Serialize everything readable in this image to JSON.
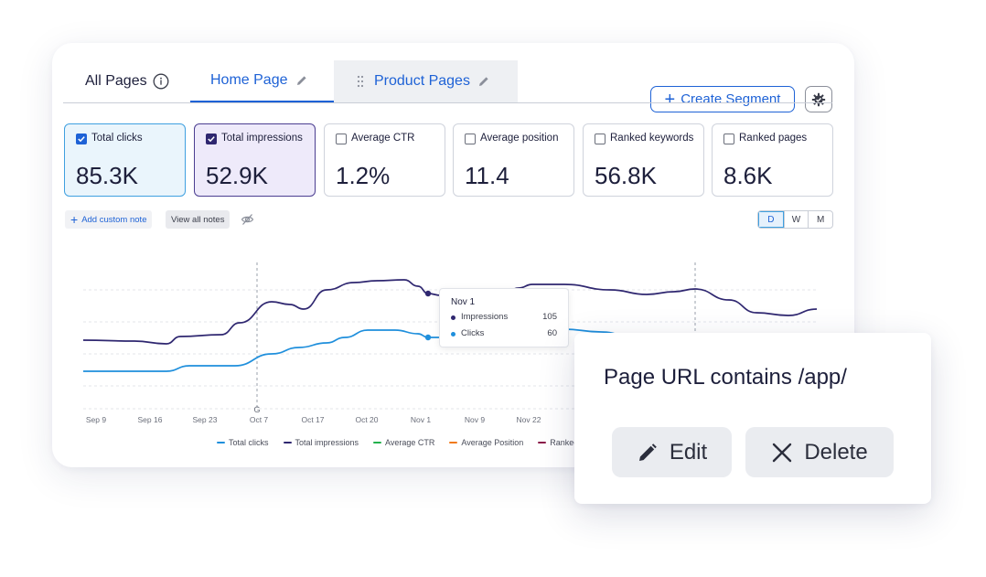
{
  "tabs": {
    "all_pages": "All Pages",
    "home_page": "Home Page",
    "product_pages": "Product Pages"
  },
  "toolbar": {
    "create_segment": "Create Segment",
    "settings_icon": "gear-check-icon"
  },
  "metrics": [
    {
      "label": "Total clicks",
      "value": "85.3K",
      "checked": true
    },
    {
      "label": "Total impressions",
      "value": "52.9K",
      "checked": true
    },
    {
      "label": "Average CTR",
      "value": "1.2%",
      "checked": false
    },
    {
      "label": "Average position",
      "value": "11.4",
      "checked": false
    },
    {
      "label": "Ranked keywords",
      "value": "56.8K",
      "checked": false
    },
    {
      "label": "Ranked pages",
      "value": "8.6K",
      "checked": false
    }
  ],
  "notes": {
    "add_custom_note": "Add custom note",
    "view_all_notes": "View all notes"
  },
  "range_toggle": [
    "D",
    "W",
    "M"
  ],
  "chart_data": {
    "type": "line",
    "x_ticks": [
      "Sep 9",
      "Sep 16",
      "Sep 23",
      "Oct 7",
      "Oct 17",
      "Oct 20",
      "Nov 1",
      "Nov 9",
      "Nov 22"
    ],
    "annotation_marker": "G",
    "legend": [
      "Total clicks",
      "Total impressions",
      "Average CTR",
      "Average Position",
      "Ranked k"
    ],
    "colors": {
      "Total clicks": "#1f8fdc",
      "Total impressions": "#2f2770",
      "Average CTR": "#22b14c",
      "Average Position": "#f07a1a",
      "Ranked k": "#8b1d4a"
    },
    "grid": true,
    "tooltip": {
      "title": "Nov 1",
      "rows": [
        {
          "label": "Impressions",
          "value": "105",
          "color": "#2f2770"
        },
        {
          "label": "Clicks",
          "value": "60",
          "color": "#1f8fdc"
        }
      ]
    }
  },
  "segment_popup": {
    "condition": "Page URL contains /app/",
    "edit_label": "Edit",
    "delete_label": "Delete"
  }
}
